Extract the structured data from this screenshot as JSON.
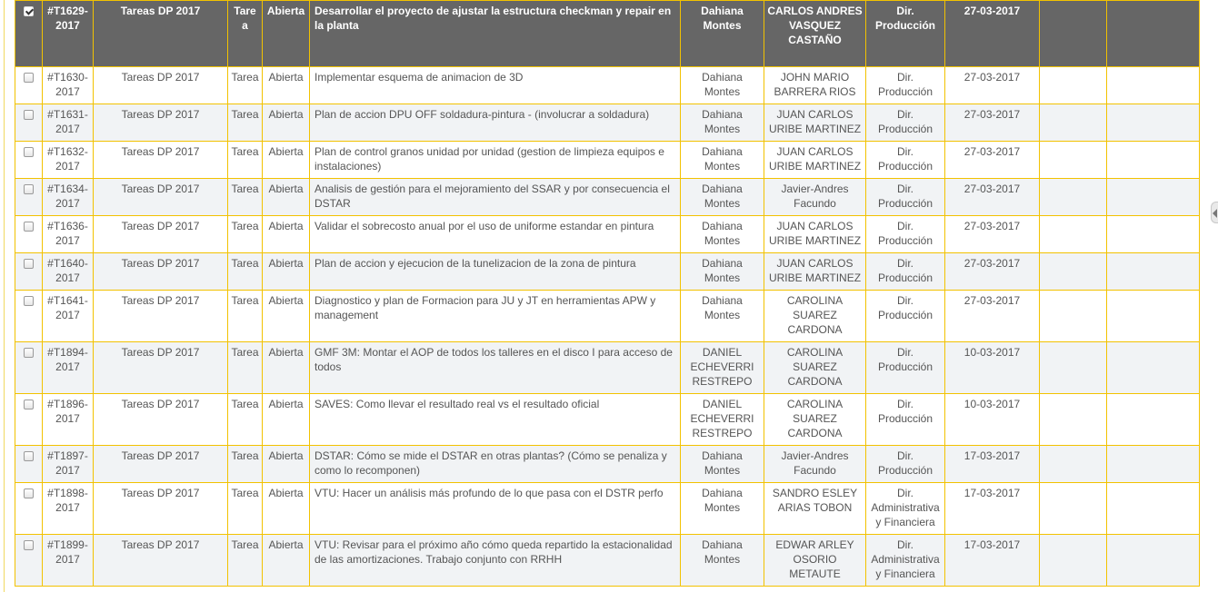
{
  "rows": [
    {
      "selected": true,
      "id": "#T1629-2017",
      "group": "Tareas DP 2017",
      "type": "Tarea",
      "status": "Abierta",
      "description": "Desarrollar el proyecto de ajustar la estructura checkman y repair en la planta",
      "creator": "Dahiana Montes",
      "responsible": "CARLOS ANDRES VASQUEZ CASTAÑO",
      "area": "Dir. Producción",
      "date": "27-03-2017",
      "extra1": "",
      "extra2": ""
    },
    {
      "selected": false,
      "id": "#T1630-2017",
      "group": "Tareas DP 2017",
      "type": "Tarea",
      "status": "Abierta",
      "description": "Implementar esquema de animacion de 3D",
      "creator": "Dahiana Montes",
      "responsible": "JOHN MARIO BARRERA RIOS",
      "area": "Dir. Producción",
      "date": "27-03-2017",
      "extra1": "",
      "extra2": ""
    },
    {
      "selected": false,
      "id": "#T1631-2017",
      "group": "Tareas DP 2017",
      "type": "Tarea",
      "status": "Abierta",
      "description": "Plan de accion DPU OFF soldadura-pintura - (involucrar a soldadura)",
      "creator": "Dahiana Montes",
      "responsible": "JUAN CARLOS URIBE MARTINEZ",
      "area": "Dir. Producción",
      "date": "27-03-2017",
      "extra1": "",
      "extra2": ""
    },
    {
      "selected": false,
      "id": "#T1632-2017",
      "group": "Tareas DP 2017",
      "type": "Tarea",
      "status": "Abierta",
      "description": "Plan de control granos unidad por unidad (gestion de limpieza equipos e instalaciones)",
      "creator": "Dahiana Montes",
      "responsible": "JUAN CARLOS URIBE MARTINEZ",
      "area": "Dir. Producción",
      "date": "27-03-2017",
      "extra1": "",
      "extra2": ""
    },
    {
      "selected": false,
      "id": "#T1634-2017",
      "group": "Tareas DP 2017",
      "type": "Tarea",
      "status": "Abierta",
      "description": "Analisis de gestión para el mejoramiento del SSAR y por consecuencia el DSTAR",
      "creator": "Dahiana Montes",
      "responsible": "Javier-Andres Facundo",
      "area": "Dir. Producción",
      "date": "27-03-2017",
      "extra1": "",
      "extra2": ""
    },
    {
      "selected": false,
      "id": "#T1636-2017",
      "group": "Tareas DP 2017",
      "type": "Tarea",
      "status": "Abierta",
      "description": "Validar el sobrecosto anual por el uso de uniforme estandar en pintura",
      "creator": "Dahiana Montes",
      "responsible": "JUAN CARLOS URIBE MARTINEZ",
      "area": "Dir. Producción",
      "date": "27-03-2017",
      "extra1": "",
      "extra2": ""
    },
    {
      "selected": false,
      "id": "#T1640-2017",
      "group": "Tareas DP 2017",
      "type": "Tarea",
      "status": "Abierta",
      "description": "Plan de accion y ejecucion de la tunelizacion de la zona de pintura",
      "creator": "Dahiana Montes",
      "responsible": "JUAN CARLOS URIBE MARTINEZ",
      "area": "Dir. Producción",
      "date": "27-03-2017",
      "extra1": "",
      "extra2": ""
    },
    {
      "selected": false,
      "id": "#T1641-2017",
      "group": "Tareas DP 2017",
      "type": "Tarea",
      "status": "Abierta",
      "description": "Diagnostico y plan de Formacion para JU y JT en herramientas APW y management",
      "creator": "Dahiana Montes",
      "responsible": "CAROLINA SUAREZ CARDONA",
      "area": "Dir. Producción",
      "date": "27-03-2017",
      "extra1": "",
      "extra2": ""
    },
    {
      "selected": false,
      "id": "#T1894-2017",
      "group": "Tareas DP 2017",
      "type": "Tarea",
      "status": "Abierta",
      "description": "GMF 3M: Montar el AOP de todos los talleres en el disco I para acceso de todos",
      "creator": "DANIEL ECHEVERRI RESTREPO",
      "responsible": "CAROLINA SUAREZ CARDONA",
      "area": "Dir. Producción",
      "date": "10-03-2017",
      "extra1": "",
      "extra2": ""
    },
    {
      "selected": false,
      "id": "#T1896-2017",
      "group": "Tareas DP 2017",
      "type": "Tarea",
      "status": "Abierta",
      "description": "SAVES: Como llevar el resultado real vs el resultado oficial",
      "creator": "DANIEL ECHEVERRI RESTREPO",
      "responsible": "CAROLINA SUAREZ CARDONA",
      "area": "Dir. Producción",
      "date": "10-03-2017",
      "extra1": "",
      "extra2": ""
    },
    {
      "selected": false,
      "id": "#T1897-2017",
      "group": "Tareas DP 2017",
      "type": "Tarea",
      "status": "Abierta",
      "description": "DSTAR: Cómo se mide el DSTAR en otras plantas? (Cómo se penaliza y como lo recomponen)",
      "creator": "Dahiana Montes",
      "responsible": "Javier-Andres Facundo",
      "area": "Dir. Producción",
      "date": "17-03-2017",
      "extra1": "",
      "extra2": ""
    },
    {
      "selected": false,
      "id": "#T1898-2017",
      "group": "Tareas DP 2017",
      "type": "Tarea",
      "status": "Abierta",
      "description": "VTU: Hacer un análisis más profundo de lo que pasa con el DSTR perfo",
      "creator": "Dahiana Montes",
      "responsible": "SANDRO ESLEY ARIAS TOBON",
      "area": "Dir. Administrativa y Financiera",
      "date": "17-03-2017",
      "extra1": "",
      "extra2": ""
    },
    {
      "selected": false,
      "id": "#T1899-2017",
      "group": "Tareas DP 2017",
      "type": "Tarea",
      "status": "Abierta",
      "description": "VTU: Revisar para el próximo año cómo queda repartido la estacionalidad de las amortizaciones. Trabajo conjunto con RRHH",
      "creator": "Dahiana Montes",
      "responsible": "EDWAR ARLEY OSORIO METAUTE",
      "area": "Dir. Administrativa y Financiera",
      "date": "17-03-2017",
      "extra1": "",
      "extra2": ""
    }
  ]
}
